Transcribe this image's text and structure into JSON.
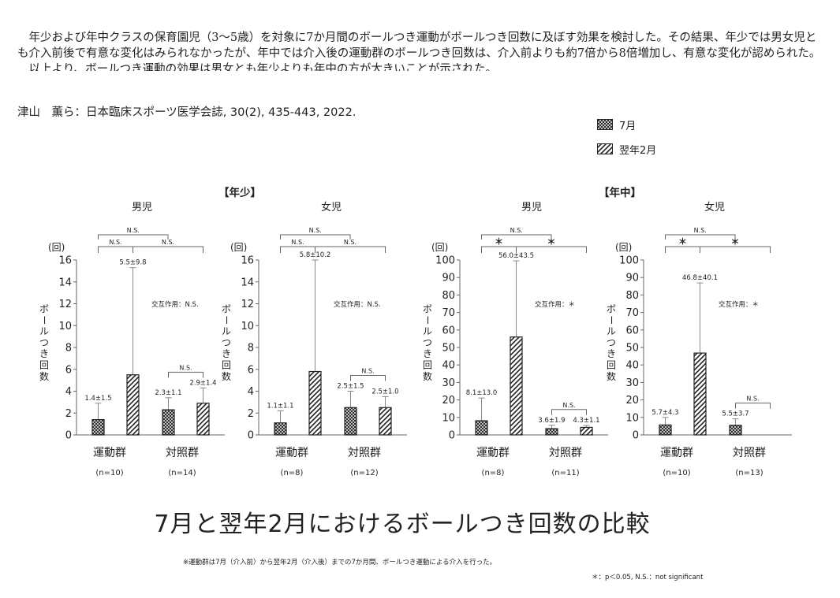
{
  "abstract": {
    "line1": "年少および年中クラスの保育園児（3～5歳）を対象に7か月間のボールつき運動がボールつき回数に及ぼす効果を検討した。その結果、年少では男女児とも介入前後で有意な変化はみられなかったが、年中では介入後の運動群のボールつき回数は、介入前よりも約7倍から8倍増加し、有意な変化が認められた。",
    "line2": "以上より、ボールつき運動の効果は男女とも年少よりも年中の方が大きいことが示された。"
  },
  "citation": "津山　薫ら：日本臨床スポーツ医学会誌, 30(2), 435-443, 2022.",
  "legend": [
    {
      "label": "7月",
      "pattern": "crosshatch"
    },
    {
      "label": "翌年2月",
      "pattern": "diagonal"
    }
  ],
  "groups": {
    "nensho": "【年少】",
    "nenchu": "【年中】"
  },
  "main_title": "7月と翌年2月におけるボールつき回数の比較",
  "footnote": "※運動群は7月（介入前）から翌年2月（介入後）までの7か月間、ボールつき運動による介入を行った。",
  "significance_note": "＊：p＜0.05,  N.S.：not significant",
  "chart_data": [
    {
      "type": "bar",
      "title": "男児",
      "unit": "(回)",
      "ylabel": "ボールつき回数",
      "ylim": [
        0,
        16
      ],
      "yticks": [
        0,
        2,
        4,
        6,
        8,
        10,
        12,
        14,
        16
      ],
      "interaction": "交互作用：N.S.",
      "categories": [
        {
          "name": "運動群",
          "n": "(n=10)"
        },
        {
          "name": "対照群",
          "n": "(n=14)"
        }
      ],
      "series": [
        {
          "name": "7月",
          "values": [
            1.4,
            2.3
          ]
        },
        {
          "name": "翌年2月",
          "values": [
            5.5,
            2.9
          ]
        }
      ],
      "sd": [
        [
          1.5,
          1.1
        ],
        [
          9.8,
          1.4
        ]
      ],
      "labels": [
        [
          "1.4±1.5",
          "2.3±1.1"
        ],
        [
          "5.5±9.8",
          "2.9±1.4"
        ]
      ],
      "sig": {
        "top": "N.S.",
        "left": "N.S.",
        "right": "N.S.",
        "control": "N.S."
      }
    },
    {
      "type": "bar",
      "title": "女児",
      "unit": "(回)",
      "ylabel": "ボールつき回数",
      "ylim": [
        0,
        16
      ],
      "yticks": [
        0,
        2,
        4,
        6,
        8,
        10,
        12,
        14,
        16
      ],
      "interaction": "交互作用：N.S.",
      "categories": [
        {
          "name": "運動群",
          "n": "(n=8)"
        },
        {
          "name": "対照群",
          "n": "(n=12)"
        }
      ],
      "series": [
        {
          "name": "7月",
          "values": [
            1.1,
            2.5
          ]
        },
        {
          "name": "翌年2月",
          "values": [
            5.8,
            2.5
          ]
        }
      ],
      "sd": [
        [
          1.1,
          1.5
        ],
        [
          10.2,
          1.0
        ]
      ],
      "labels": [
        [
          "1.1±1.1",
          "2.5±1.5"
        ],
        [
          "5.8±10.2",
          "2.5±1.0"
        ]
      ],
      "sig": {
        "top": "N.S.",
        "left": "N.S.",
        "right": "N.S.",
        "control": "N.S."
      }
    },
    {
      "type": "bar",
      "title": "男児",
      "unit": "(回)",
      "ylabel": "ボールつき回数",
      "ylim": [
        0,
        100
      ],
      "yticks": [
        0,
        10,
        20,
        30,
        40,
        50,
        60,
        70,
        80,
        90,
        100
      ],
      "interaction": "交互作用：＊",
      "categories": [
        {
          "name": "運動群",
          "n": "(n=8)"
        },
        {
          "name": "対照群",
          "n": "(n=11)"
        }
      ],
      "series": [
        {
          "name": "7月",
          "values": [
            8.1,
            3.6
          ]
        },
        {
          "name": "翌年2月",
          "values": [
            56.0,
            4.3
          ]
        }
      ],
      "sd": [
        [
          13.0,
          1.9
        ],
        [
          43.5,
          1.1
        ]
      ],
      "labels": [
        [
          "8.1±13.0",
          "3.6±1.9"
        ],
        [
          "56.0±43.5",
          "4.3±1.1"
        ]
      ],
      "sig": {
        "top": "N.S.",
        "left": "＊",
        "right": "＊",
        "control": "N.S."
      }
    },
    {
      "type": "bar",
      "title": "女児",
      "unit": "(回)",
      "ylabel": "ボールつき回数",
      "ylim": [
        0,
        100
      ],
      "yticks": [
        0,
        10,
        20,
        30,
        40,
        50,
        60,
        70,
        80,
        90,
        100
      ],
      "interaction": "交互作用：＊",
      "categories": [
        {
          "name": "運動群",
          "n": "(n=10)"
        },
        {
          "name": "対照群",
          "n": "(n=13)"
        }
      ],
      "series": [
        {
          "name": "7月",
          "values": [
            5.7,
            5.5
          ]
        },
        {
          "name": "翌年2月",
          "values": [
            46.8,
            null
          ]
        }
      ],
      "sd": [
        [
          4.3,
          3.7
        ],
        [
          40.1,
          null
        ]
      ],
      "labels": [
        [
          "5.7±4.3",
          "5.5±3.7"
        ],
        [
          "46.8±40.1",
          ""
        ]
      ],
      "sig": {
        "top": "N.S.",
        "left": "＊",
        "right": "＊",
        "control": "N.S."
      }
    }
  ]
}
